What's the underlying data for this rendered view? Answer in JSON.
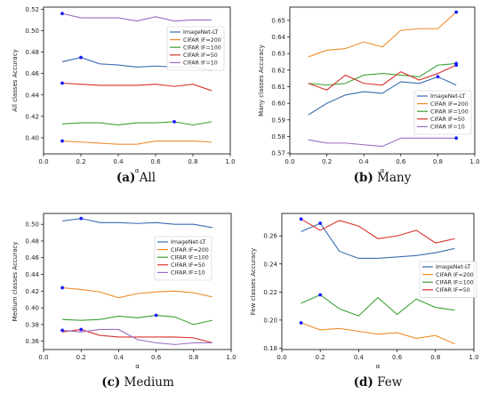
{
  "colors": {
    "ImageNet-LT": "#3b6bb1",
    "CIFAR IF=200": "#f08c2a",
    "CIFAR IF=100": "#3ca233",
    "CIFAR IF=50": "#d6322c",
    "CIFAR IF=10": "#9a6cc4",
    "marker": "#1a1aff"
  },
  "chart_data": [
    {
      "type": "line",
      "caption_letter": "(a)",
      "caption_text": "All",
      "xlabel": "α",
      "ylabel": "All classes Accuracy",
      "xlim": [
        0.0,
        1.0
      ],
      "ylim": [
        0.385,
        0.522
      ],
      "xticks": [
        "0.0",
        "0.2",
        "0.4",
        "0.6",
        "0.8",
        "1.0"
      ],
      "yticks": [
        "0.40",
        "0.42",
        "0.44",
        "0.46",
        "0.48",
        "0.50",
        "0.52"
      ],
      "legend": "right",
      "x": [
        0.1,
        0.2,
        0.3,
        0.4,
        0.5,
        0.6,
        0.7,
        0.8,
        0.9
      ],
      "series": [
        {
          "name": "ImageNet-LT",
          "values": [
            0.471,
            0.475,
            0.469,
            0.468,
            0.466,
            0.467,
            0.466,
            0.466,
            0.463
          ],
          "marker_x": 0.2
        },
        {
          "name": "CIFAR IF=200",
          "values": [
            0.397,
            0.396,
            0.395,
            0.394,
            0.394,
            0.397,
            0.397,
            0.397,
            0.396
          ],
          "marker_x": 0.1
        },
        {
          "name": "CIFAR IF=100",
          "values": [
            0.413,
            0.414,
            0.414,
            0.412,
            0.414,
            0.414,
            0.415,
            0.412,
            0.415
          ],
          "marker_x": 0.7
        },
        {
          "name": "CIFAR IF=50",
          "values": [
            0.451,
            0.45,
            0.449,
            0.449,
            0.449,
            0.45,
            0.448,
            0.45,
            0.444
          ],
          "marker_x": 0.1
        },
        {
          "name": "CIFAR IF=10",
          "values": [
            0.516,
            0.512,
            0.512,
            0.512,
            0.509,
            0.513,
            0.509,
            0.51,
            0.51
          ],
          "marker_x": 0.1
        }
      ]
    },
    {
      "type": "line",
      "caption_letter": "(b)",
      "caption_text": "Many",
      "xlabel": "α",
      "ylabel": "Many classes Accuracy",
      "xlim": [
        0.0,
        1.0
      ],
      "ylim": [
        0.5695,
        0.658
      ],
      "xticks": [
        "0.0",
        "0.2",
        "0.4",
        "0.6",
        "0.8",
        "1.0"
      ],
      "yticks": [
        "0.57",
        "0.58",
        "0.59",
        "0.60",
        "0.61",
        "0.62",
        "0.63",
        "0.64",
        "0.65"
      ],
      "legend": "right",
      "x": [
        0.1,
        0.2,
        0.3,
        0.4,
        0.5,
        0.6,
        0.7,
        0.8,
        0.9
      ],
      "series": [
        {
          "name": "ImageNet-LT",
          "values": [
            0.593,
            0.6,
            0.605,
            0.607,
            0.606,
            0.613,
            0.612,
            0.616,
            0.611
          ],
          "marker_x": 0.8
        },
        {
          "name": "CIFAR IF=200",
          "values": [
            0.628,
            0.632,
            0.633,
            0.637,
            0.634,
            0.644,
            0.645,
            0.645,
            0.655
          ],
          "marker_x": 0.9
        },
        {
          "name": "CIFAR IF=100",
          "values": [
            0.612,
            0.611,
            0.612,
            0.617,
            0.618,
            0.617,
            0.616,
            0.623,
            0.624
          ],
          "marker_x": 0.9
        },
        {
          "name": "CIFAR IF=50",
          "values": [
            0.612,
            0.608,
            0.617,
            0.612,
            0.611,
            0.619,
            0.614,
            0.618,
            0.623
          ],
          "marker_x": 0.9
        },
        {
          "name": "CIFAR IF=10",
          "values": [
            0.578,
            0.576,
            0.576,
            0.575,
            0.574,
            0.579,
            0.579,
            0.579,
            0.579
          ],
          "marker_x": 0.9
        }
      ]
    },
    {
      "type": "line",
      "caption_letter": "(c)",
      "caption_text": "Medium",
      "xlabel": "α",
      "ylabel": "Medium classes Accuracy",
      "xlim": [
        0.0,
        1.0
      ],
      "ylim": [
        0.35,
        0.513
      ],
      "xticks": [
        "0.0",
        "0.2",
        "0.4",
        "0.6",
        "0.8",
        "1.0"
      ],
      "yticks": [
        "0.36",
        "0.38",
        "0.40",
        "0.42",
        "0.44",
        "0.46",
        "0.48",
        "0.50"
      ],
      "legend": "right",
      "x": [
        0.1,
        0.2,
        0.3,
        0.4,
        0.5,
        0.6,
        0.7,
        0.8,
        0.9
      ],
      "series": [
        {
          "name": "ImageNet-LT",
          "values": [
            0.504,
            0.507,
            0.502,
            0.502,
            0.501,
            0.502,
            0.5,
            0.5,
            0.496
          ],
          "marker_x": 0.2
        },
        {
          "name": "CIFAR IF=200",
          "values": [
            0.424,
            0.422,
            0.419,
            0.412,
            0.417,
            0.419,
            0.42,
            0.418,
            0.413
          ],
          "marker_x": 0.1
        },
        {
          "name": "CIFAR IF=100",
          "values": [
            0.386,
            0.385,
            0.386,
            0.39,
            0.388,
            0.391,
            0.389,
            0.38,
            0.385
          ],
          "marker_x": 0.6
        },
        {
          "name": "CIFAR IF=50",
          "values": [
            0.371,
            0.374,
            0.367,
            0.365,
            0.365,
            0.365,
            0.365,
            0.364,
            0.358
          ],
          "marker_x": 0.2
        },
        {
          "name": "CIFAR IF=10",
          "values": [
            0.373,
            0.371,
            0.374,
            0.374,
            0.362,
            0.358,
            0.356,
            0.358,
            0.358
          ],
          "marker_x": 0.1
        }
      ]
    },
    {
      "type": "line",
      "caption_letter": "(d)",
      "caption_text": "Few",
      "xlabel": "α",
      "ylabel": "Few classes Accuracy",
      "xlim": [
        0.0,
        1.0
      ],
      "ylim": [
        0.179,
        0.276
      ],
      "xticks": [
        "0.0",
        "0.2",
        "0.4",
        "0.6",
        "0.8",
        "1.0"
      ],
      "yticks": [
        "0.18",
        "0.20",
        "0.22",
        "0.24",
        "0.26"
      ],
      "legend": "right",
      "x": [
        0.1,
        0.2,
        0.3,
        0.4,
        0.5,
        0.6,
        0.7,
        0.8,
        0.9
      ],
      "series": [
        {
          "name": "ImageNet-LT",
          "values": [
            0.263,
            0.269,
            0.249,
            0.244,
            0.244,
            0.245,
            0.246,
            0.248,
            0.251
          ],
          "marker_x": 0.2
        },
        {
          "name": "CIFAR IF=200",
          "values": [
            0.198,
            0.193,
            0.194,
            0.192,
            0.19,
            0.191,
            0.187,
            0.189,
            0.183
          ],
          "marker_x": 0.1
        },
        {
          "name": "CIFAR IF=100",
          "values": [
            0.212,
            0.218,
            0.208,
            0.203,
            0.216,
            0.204,
            0.215,
            0.209,
            0.207
          ],
          "marker_x": 0.2
        },
        {
          "name": "CIFAR IF=50",
          "values": [
            0.272,
            0.264,
            0.271,
            0.267,
            0.258,
            0.26,
            0.264,
            0.255,
            0.258
          ],
          "marker_x": 0.1
        }
      ]
    }
  ]
}
